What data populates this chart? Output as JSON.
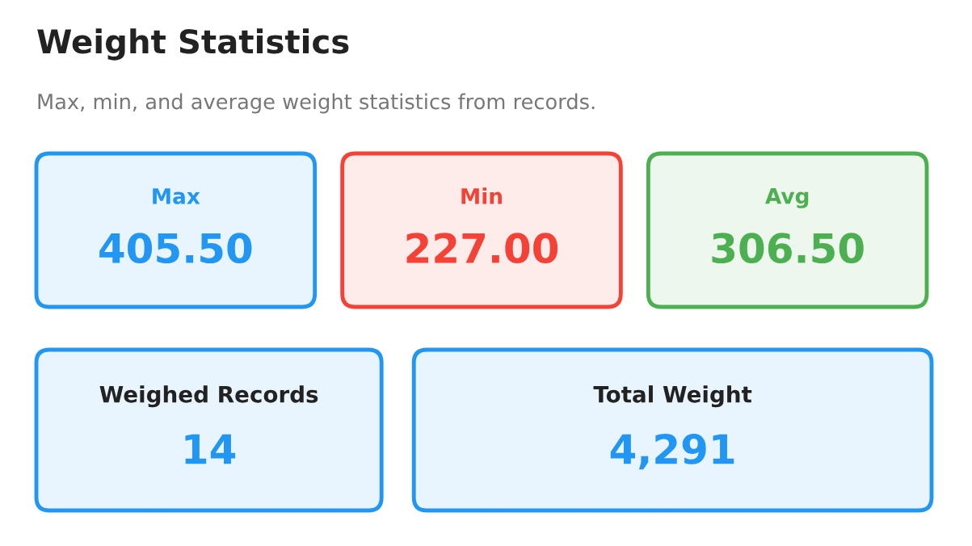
{
  "chart_data": {
    "type": "other",
    "title": "Weight Statistics",
    "subtitle": "Max, min, and average weight statistics from records.",
    "categories": [
      "Max",
      "Min",
      "Avg",
      "Weighed Records",
      "Total Weight"
    ],
    "values": [
      405.5,
      227,
      306.5,
      14,
      4291
    ],
    "value_labels": [
      "405.50",
      "227.00",
      "306.50",
      "14",
      "4,291"
    ],
    "colors": [
      "#2196f3",
      "#f44336",
      "#4caf50",
      "#2196f3",
      "#2196f3"
    ]
  }
}
